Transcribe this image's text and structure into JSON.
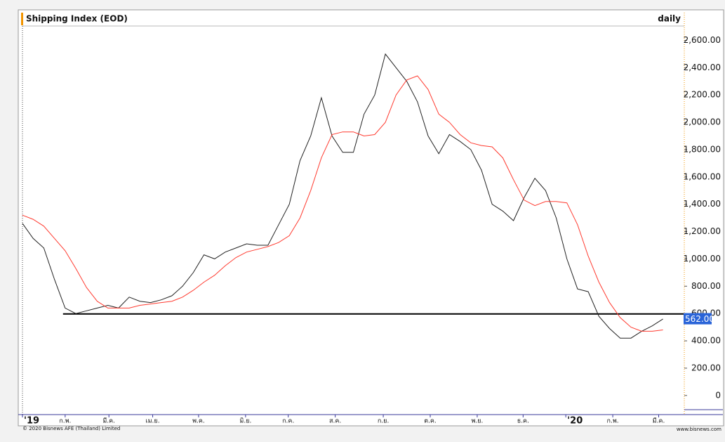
{
  "chart_data": {
    "type": "line",
    "title": "Shipping Index (EOD)",
    "period": "daily",
    "footer_left": "© 2020 Bisnews AFE (Thailand) Limited",
    "footer_right": "www.bisnews.com",
    "x": [
      0,
      1,
      2,
      3,
      4,
      5,
      6,
      7,
      8,
      9,
      10,
      11,
      12,
      13,
      14,
      15,
      16,
      17,
      18,
      19,
      20,
      21,
      22,
      23,
      24,
      25,
      26,
      27,
      28,
      29,
      30,
      31,
      32,
      33,
      34,
      35,
      36,
      37,
      38,
      39,
      40,
      41,
      42,
      43,
      44,
      45,
      46,
      47,
      48,
      49,
      50,
      51,
      52,
      53,
      54,
      55,
      56,
      57,
      58,
      59,
      60
    ],
    "series": [
      {
        "color": "#222222",
        "values": [
          1260,
          1150,
          1080,
          850,
          640,
          600,
          620,
          640,
          660,
          640,
          720,
          690,
          680,
          700,
          730,
          800,
          900,
          1030,
          1000,
          1050,
          1080,
          1110,
          1100,
          1100,
          1250,
          1400,
          1720,
          1900,
          2180,
          1900,
          1780,
          1780,
          2060,
          2200,
          2500,
          2400,
          2300,
          2150,
          1900,
          1770,
          1910,
          1860,
          1800,
          1650,
          1400,
          1350,
          1280,
          1450,
          1590,
          1500,
          1300,
          1000,
          780,
          760,
          580,
          490,
          420,
          420,
          470,
          510,
          560
        ]
      },
      {
        "color": "#ff3b30",
        "values": [
          1320,
          1290,
          1240,
          1150,
          1060,
          930,
          790,
          690,
          640,
          640,
          640,
          660,
          670,
          680,
          690,
          720,
          770,
          830,
          880,
          950,
          1010,
          1050,
          1070,
          1090,
          1120,
          1170,
          1300,
          1500,
          1740,
          1910,
          1930,
          1930,
          1900,
          1910,
          2000,
          2200,
          2310,
          2340,
          2240,
          2060,
          2000,
          1910,
          1850,
          1830,
          1820,
          1740,
          1580,
          1430,
          1390,
          1420,
          1420,
          1410,
          1250,
          1020,
          830,
          680,
          570,
          500,
          470,
          470,
          480
        ]
      }
    ],
    "reference_line": {
      "value": 597,
      "x_start": 3.8
    },
    "last_price": {
      "value": 562,
      "label": "562.00"
    },
    "xlim": [
      0,
      62
    ],
    "xticks": [
      {
        "value": 0,
        "label": "'19"
      },
      {
        "value": 4,
        "label": "ก.พ."
      },
      {
        "value": 8.1,
        "label": "มี.ค."
      },
      {
        "value": 12.2,
        "label": "เม.ย."
      },
      {
        "value": 16.5,
        "label": "พ.ค."
      },
      {
        "value": 20.9,
        "label": "มิ.ย."
      },
      {
        "value": 24.9,
        "label": "ก.ค."
      },
      {
        "value": 29.3,
        "label": "ส.ค."
      },
      {
        "value": 33.8,
        "label": "ก.ย."
      },
      {
        "value": 38.2,
        "label": "ต.ค."
      },
      {
        "value": 42.6,
        "label": "พ.ย."
      },
      {
        "value": 46.9,
        "label": "ธ.ค."
      },
      {
        "value": 50.9,
        "label": "'20"
      },
      {
        "value": 55.3,
        "label": "ก.พ."
      },
      {
        "value": 59.6,
        "label": "มี.ค."
      }
    ],
    "ylim": [
      -140,
      2700
    ],
    "yticks": [
      {
        "value": 2600,
        "label": "2,600.00"
      },
      {
        "value": 2400,
        "label": "2,400.00"
      },
      {
        "value": 2200,
        "label": "2,200.00"
      },
      {
        "value": 2000,
        "label": "2,000.00"
      },
      {
        "value": 1800,
        "label": "1,800.00"
      },
      {
        "value": 1600,
        "label": "1,600.00"
      },
      {
        "value": 1400,
        "label": "1,400.00"
      },
      {
        "value": 1200,
        "label": "1,200.00"
      },
      {
        "value": 1000,
        "label": "1,000.00"
      },
      {
        "value": 800,
        "label": "800.00"
      },
      {
        "value": 600,
        "label": "600.00"
      },
      {
        "value": 400,
        "label": "400.00"
      },
      {
        "value": 200,
        "label": "200.00"
      },
      0
    ]
  }
}
